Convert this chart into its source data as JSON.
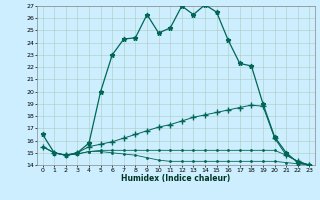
{
  "title": "",
  "xlabel": "Humidex (Indice chaleur)",
  "background_color": "#cceeff",
  "grid_color": "#aaccbb",
  "line_color": "#006655",
  "xlim": [
    -0.5,
    23.5
  ],
  "ylim": [
    14,
    27
  ],
  "xtick_labels": [
    "0",
    "1",
    "2",
    "3",
    "4",
    "5",
    "6",
    "7",
    "8",
    "9",
    "10",
    "11",
    "12",
    "13",
    "14",
    "15",
    "16",
    "17",
    "18",
    "19",
    "20",
    "21",
    "22",
    "23"
  ],
  "xtick_vals": [
    0,
    1,
    2,
    3,
    4,
    5,
    6,
    7,
    8,
    9,
    10,
    11,
    12,
    13,
    14,
    15,
    16,
    17,
    18,
    19,
    20,
    21,
    22,
    23
  ],
  "ytick_vals": [
    14,
    15,
    16,
    17,
    18,
    19,
    20,
    21,
    22,
    23,
    24,
    25,
    26,
    27
  ],
  "lines": [
    {
      "x": [
        0,
        1,
        2,
        3,
        4,
        5,
        6,
        7,
        8,
        9,
        10,
        11,
        12,
        13,
        14,
        15,
        16,
        17,
        18,
        19,
        20,
        21,
        22,
        23
      ],
      "y": [
        16.5,
        15.0,
        14.8,
        15.0,
        15.8,
        20.0,
        23.0,
        24.3,
        24.4,
        26.3,
        24.8,
        25.2,
        27.0,
        26.3,
        27.1,
        26.5,
        24.2,
        22.3,
        22.1,
        19.0,
        16.3,
        15.0,
        14.2,
        14.0
      ],
      "marker": "*",
      "markersize": 3.5,
      "linewidth": 0.9
    },
    {
      "x": [
        0,
        1,
        2,
        3,
        4,
        5,
        6,
        7,
        8,
        9,
        10,
        11,
        12,
        13,
        14,
        15,
        16,
        17,
        18,
        19,
        20,
        21,
        22,
        23
      ],
      "y": [
        15.5,
        15.0,
        14.8,
        15.0,
        15.5,
        15.7,
        15.9,
        16.2,
        16.5,
        16.8,
        17.1,
        17.3,
        17.6,
        17.9,
        18.1,
        18.3,
        18.5,
        18.7,
        18.9,
        18.8,
        16.2,
        14.8,
        14.3,
        14.0
      ],
      "marker": "+",
      "markersize": 4,
      "linewidth": 0.7
    },
    {
      "x": [
        0,
        1,
        2,
        3,
        4,
        5,
        6,
        7,
        8,
        9,
        10,
        11,
        12,
        13,
        14,
        15,
        16,
        17,
        18,
        19,
        20,
        21,
        22,
        23
      ],
      "y": [
        15.5,
        15.0,
        14.8,
        14.9,
        15.1,
        15.2,
        15.2,
        15.2,
        15.2,
        15.2,
        15.2,
        15.2,
        15.2,
        15.2,
        15.2,
        15.2,
        15.2,
        15.2,
        15.2,
        15.2,
        15.2,
        14.8,
        14.3,
        14.0
      ],
      "marker": ".",
      "markersize": 2,
      "linewidth": 0.6
    },
    {
      "x": [
        0,
        1,
        2,
        3,
        4,
        5,
        6,
        7,
        8,
        9,
        10,
        11,
        12,
        13,
        14,
        15,
        16,
        17,
        18,
        19,
        20,
        21,
        22,
        23
      ],
      "y": [
        15.5,
        15.0,
        14.8,
        14.9,
        15.1,
        15.1,
        15.0,
        14.9,
        14.8,
        14.6,
        14.4,
        14.3,
        14.3,
        14.3,
        14.3,
        14.3,
        14.3,
        14.3,
        14.3,
        14.3,
        14.3,
        14.2,
        14.1,
        14.0
      ],
      "marker": ".",
      "markersize": 2,
      "linewidth": 0.6
    }
  ]
}
